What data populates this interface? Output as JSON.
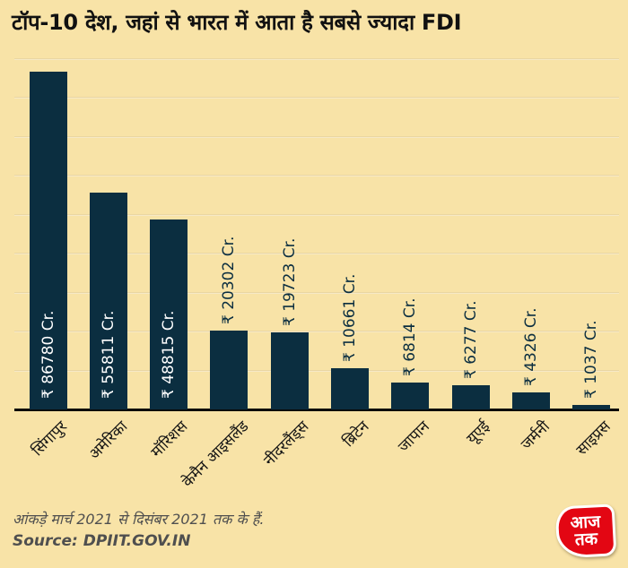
{
  "title": "टॉप-10 देश, जहां से भारत में आता है सबसे ज्यादा FDI",
  "chart_data": {
    "type": "bar",
    "categories": [
      "सिंगापुर",
      "अमेरिका",
      "मॉरिशस",
      "केमैन आइसलैंड",
      "नीदरलैंड्स",
      "ब्रिटेन",
      "जापान",
      "यूएई",
      "जर्मनी",
      "साइप्रस"
    ],
    "values": [
      86780,
      55811,
      48815,
      20302,
      19723,
      10661,
      6814,
      6277,
      4326,
      1037
    ],
    "value_labels": [
      "₹ 86780 Cr.",
      "₹ 55811 Cr.",
      "₹ 48815 Cr.",
      "₹ 20302 Cr.",
      "₹ 19723 Cr.",
      "₹ 10661 Cr.",
      "₹ 6814 Cr.",
      "₹ 6277 Cr.",
      "₹ 4326 Cr.",
      "₹ 1037 Cr."
    ],
    "currency_symbol": "₹",
    "unit": "Cr.",
    "xlabel": "",
    "ylabel": "",
    "ylim": [
      0,
      90000
    ],
    "gridline_interval": 10000,
    "grid": true,
    "legend": "none",
    "inside_label_count": 3
  },
  "footer": {
    "note": "आंकड़े मार्च 2021  से दिसंबर 2021 तक के हैं.",
    "source": "Source: DPIIT.GOV.IN"
  },
  "logo": {
    "line1": "आज",
    "line2": "तक"
  },
  "colors": {
    "background": "#f8e3a7",
    "bar": "#0b2e40",
    "axis": "#0a0a0a",
    "title_text": "#111111",
    "inside_value_text": "#ffffff",
    "outside_value_text": "#0b2e40",
    "category_text": "#151515",
    "footer_text": "#4f4f4f",
    "logo_red": "#e30613"
  }
}
